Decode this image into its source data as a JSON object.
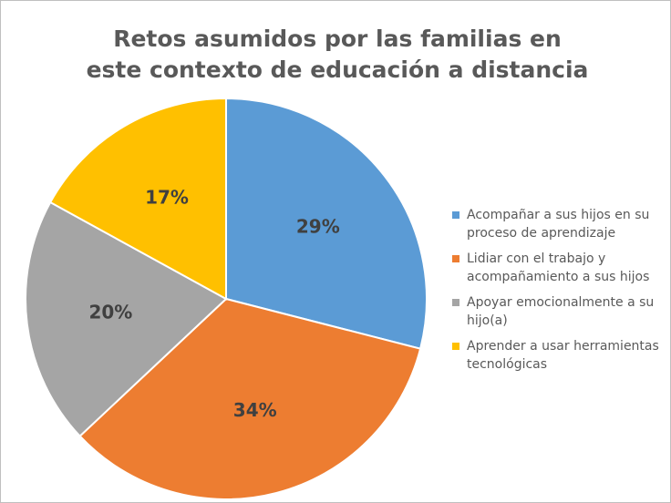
{
  "chart_data": {
    "type": "pie",
    "title": "Retos asumidos por las familias en este contexto de educación a distancia",
    "categories": [
      "Acompañar a sus hijos en su proceso de aprendizaje",
      "Lidiar con el trabajo y acompañamiento a sus hijos",
      "Apoyar emocionalmente a su hijo(a)",
      "Aprender a usar herramientas tecnológicas"
    ],
    "values": [
      29,
      34,
      20,
      17
    ],
    "value_labels": [
      "29%",
      "34%",
      "20%",
      "17%"
    ],
    "colors": [
      "#5b9bd5",
      "#ed7d31",
      "#a5a5a5",
      "#ffc000"
    ],
    "legend": "right"
  }
}
